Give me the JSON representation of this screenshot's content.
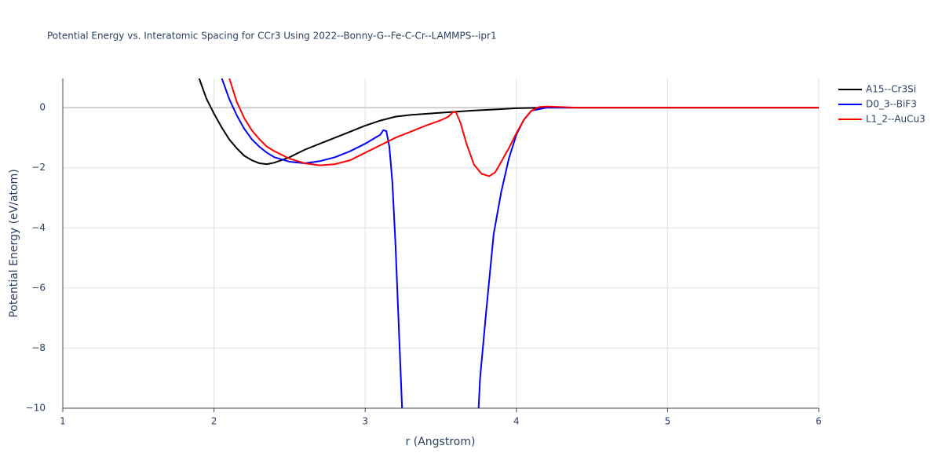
{
  "chart_data": {
    "type": "line",
    "title": "Potential Energy vs. Interatomic Spacing for CCr3 Using 2022--Bonny-G--Fe-C-Cr--LAMMPS--ipr1",
    "x_label": "r (Angstrom)",
    "y_label": "Potential Energy (eV/atom)",
    "xlim": [
      1,
      6
    ],
    "xticks": [
      1,
      2,
      3,
      4,
      5,
      6
    ],
    "ylim": [
      -10,
      0.97
    ],
    "yticks": [
      {
        "value": -10,
        "label": "−10"
      },
      {
        "value": -8,
        "label": "−8"
      },
      {
        "value": -6,
        "label": "−6"
      },
      {
        "value": -4,
        "label": "−4"
      },
      {
        "value": -2,
        "label": "−2"
      },
      0
    ],
    "grid": true,
    "legend": "top-right",
    "series": [
      {
        "name": "A15--Cr3Si",
        "color": "#000000",
        "x": [
          1.9,
          1.95,
          2.0,
          2.05,
          2.1,
          2.15,
          2.2,
          2.25,
          2.3,
          2.35,
          2.4,
          2.5,
          2.6,
          2.7,
          2.8,
          2.9,
          3.0,
          3.1,
          3.2,
          3.3,
          3.5,
          3.7,
          3.9,
          4.0,
          4.2,
          4.5,
          5.0,
          6.0
        ],
        "values": [
          1.0,
          0.3,
          -0.2,
          -0.65,
          -1.05,
          -1.35,
          -1.6,
          -1.75,
          -1.85,
          -1.88,
          -1.83,
          -1.65,
          -1.4,
          -1.2,
          -1.0,
          -0.8,
          -0.6,
          -0.43,
          -0.3,
          -0.24,
          -0.17,
          -0.1,
          -0.05,
          -0.02,
          0,
          0,
          0,
          0
        ]
      },
      {
        "name": "D0_3--BiF3",
        "color": "#0000ff",
        "x": [
          2.05,
          2.1,
          2.15,
          2.2,
          2.25,
          2.3,
          2.35,
          2.4,
          2.5,
          2.6,
          2.7,
          2.8,
          2.9,
          3.0,
          3.05,
          3.1,
          3.12,
          3.14,
          3.16,
          3.18,
          3.2,
          3.22,
          3.24,
          3.26,
          3.73,
          3.76,
          3.8,
          3.85,
          3.9,
          3.95,
          4.0,
          4.05,
          4.1,
          4.2,
          5.0,
          6.0
        ],
        "values": [
          1.0,
          0.3,
          -0.25,
          -0.7,
          -1.05,
          -1.3,
          -1.5,
          -1.65,
          -1.8,
          -1.85,
          -1.78,
          -1.65,
          -1.45,
          -1.2,
          -1.05,
          -0.9,
          -0.75,
          -0.78,
          -1.3,
          -2.5,
          -4.5,
          -7.0,
          -9.5,
          -12,
          -12,
          -9,
          -6.8,
          -4.2,
          -2.8,
          -1.7,
          -0.9,
          -0.4,
          -0.1,
          0,
          0,
          0
        ]
      },
      {
        "name": "L1_2--AuCu3",
        "color": "#ff0000",
        "x": [
          2.1,
          2.15,
          2.2,
          2.25,
          2.3,
          2.35,
          2.4,
          2.5,
          2.6,
          2.7,
          2.8,
          2.9,
          3.0,
          3.1,
          3.2,
          3.3,
          3.4,
          3.5,
          3.55,
          3.58,
          3.6,
          3.63,
          3.67,
          3.72,
          3.77,
          3.82,
          3.86,
          3.9,
          3.95,
          4.0,
          4.05,
          4.1,
          4.15,
          4.2,
          4.3,
          4.4,
          5.0,
          6.0
        ],
        "values": [
          1.0,
          0.2,
          -0.35,
          -0.75,
          -1.05,
          -1.3,
          -1.45,
          -1.7,
          -1.85,
          -1.92,
          -1.88,
          -1.75,
          -1.5,
          -1.25,
          -1.0,
          -0.8,
          -0.6,
          -0.42,
          -0.3,
          -0.15,
          -0.15,
          -0.5,
          -1.2,
          -1.9,
          -2.2,
          -2.28,
          -2.15,
          -1.8,
          -1.35,
          -0.85,
          -0.4,
          -0.1,
          0.02,
          0.04,
          0.02,
          0,
          0,
          0
        ]
      }
    ]
  }
}
